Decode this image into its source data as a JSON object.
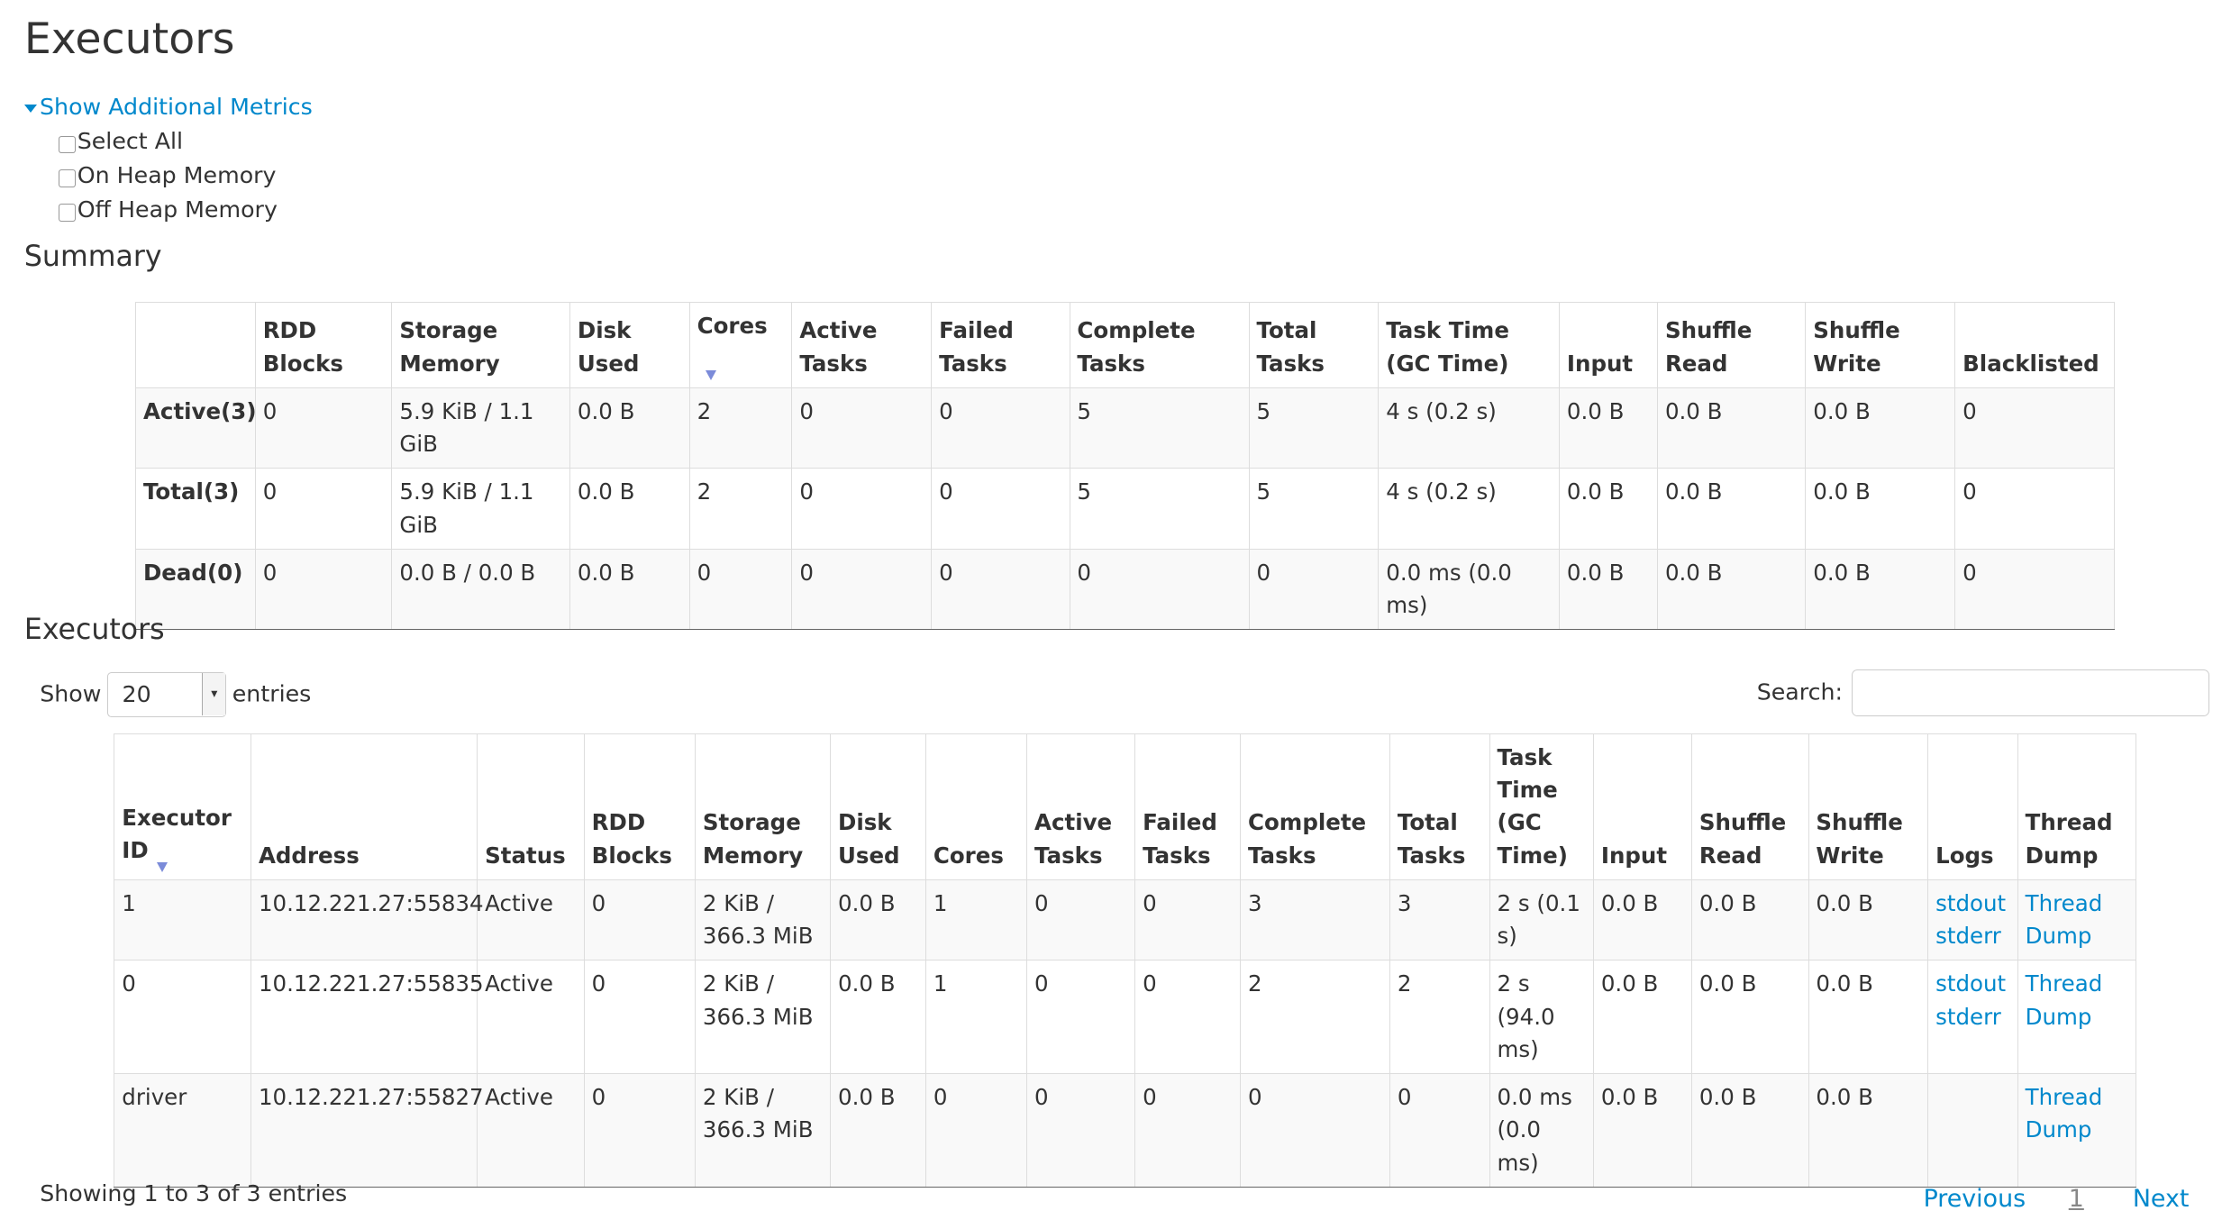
{
  "title": "Executors",
  "metrics": {
    "toggle": "Show Additional Metrics",
    "options": [
      "Select All",
      "On Heap Memory",
      "Off Heap Memory"
    ]
  },
  "summary": {
    "heading": "Summary",
    "headers": [
      "",
      "RDD Blocks",
      "Storage Memory",
      "Disk Used",
      "Cores",
      "Active Tasks",
      "Failed Tasks",
      "Complete Tasks",
      "Total Tasks",
      "Task Time (GC Time)",
      "Input",
      "Shuffle Read",
      "Shuffle Write",
      "Blacklisted"
    ],
    "rows": [
      [
        "Active(3)",
        "0",
        "5.9 KiB / 1.1 GiB",
        "0.0 B",
        "2",
        "0",
        "0",
        "5",
        "5",
        "4 s (0.2 s)",
        "0.0 B",
        "0.0 B",
        "0.0 B",
        "0"
      ],
      [
        "Total(3)",
        "0",
        "5.9 KiB / 1.1 GiB",
        "0.0 B",
        "2",
        "0",
        "0",
        "5",
        "5",
        "4 s (0.2 s)",
        "0.0 B",
        "0.0 B",
        "0.0 B",
        "0"
      ],
      [
        "Dead(0)",
        "0",
        "0.0 B / 0.0 B",
        "0.0 B",
        "0",
        "0",
        "0",
        "0",
        "0",
        "0.0 ms (0.0 ms)",
        "0.0 B",
        "0.0 B",
        "0.0 B",
        "0"
      ]
    ]
  },
  "executors": {
    "heading": "Executors",
    "show_label": "Show",
    "page_size": "20",
    "entries_label": "entries",
    "search_label": "Search:",
    "search_value": "",
    "headers": [
      "Executor ID",
      "Address",
      "Status",
      "RDD Blocks",
      "Storage Memory",
      "Disk Used",
      "Cores",
      "Active Tasks",
      "Failed Tasks",
      "Complete Tasks",
      "Total Tasks",
      "Task Time (GC Time)",
      "Input",
      "Shuffle Read",
      "Shuffle Write",
      "Logs",
      "Thread Dump"
    ],
    "rows": [
      {
        "cells": [
          "1",
          "10.12.221.27:55834",
          "Active",
          "0",
          "2 KiB / 366.3 MiB",
          "0.0 B",
          "1",
          "0",
          "0",
          "3",
          "3",
          "2 s (0.1 s)",
          "0.0 B",
          "0.0 B",
          "0.0 B"
        ],
        "stdout": "stdout",
        "stderr": "stderr",
        "thread_dump": "Thread Dump"
      },
      {
        "cells": [
          "0",
          "10.12.221.27:55835",
          "Active",
          "0",
          "2 KiB / 366.3 MiB",
          "0.0 B",
          "1",
          "0",
          "0",
          "2",
          "2",
          "2 s (94.0 ms)",
          "0.0 B",
          "0.0 B",
          "0.0 B"
        ],
        "stdout": "stdout",
        "stderr": "stderr",
        "thread_dump": "Thread Dump"
      },
      {
        "cells": [
          "driver",
          "10.12.221.27:55827",
          "Active",
          "0",
          "2 KiB / 366.3 MiB",
          "0.0 B",
          "0",
          "0",
          "0",
          "0",
          "0",
          "0.0 ms (0.0 ms)",
          "0.0 B",
          "0.0 B",
          "0.0 B"
        ],
        "thread_dump": "Thread Dump"
      }
    ],
    "info": "Showing 1 to 3 of 3 entries",
    "pager": {
      "previous": "Previous",
      "page": "1",
      "next": "Next"
    }
  },
  "colors": {
    "link": "#0088cc",
    "stripe": "#f9f9f9",
    "border": "#dddddd"
  }
}
